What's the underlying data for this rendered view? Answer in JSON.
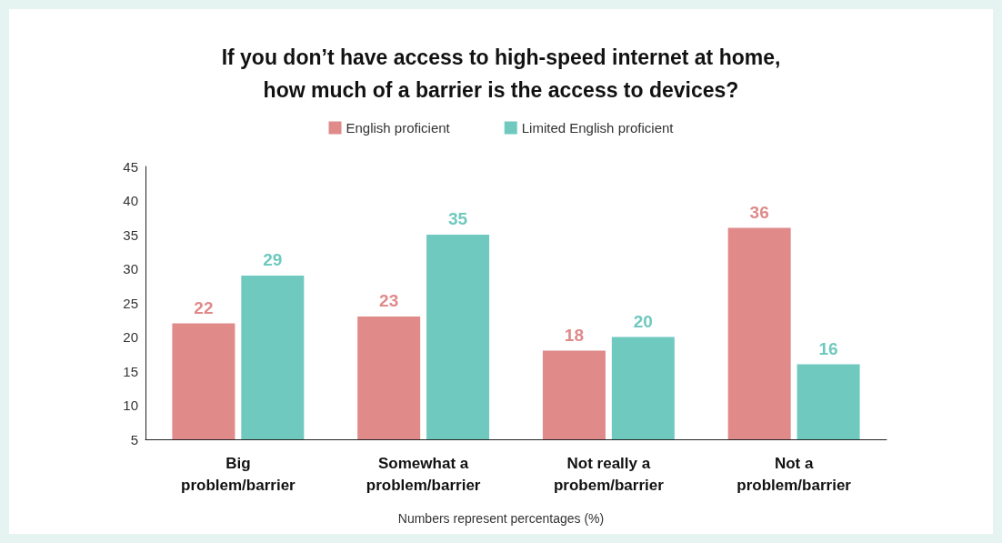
{
  "chart_data": {
    "type": "bar",
    "title": "If you don’t have access to high-speed internet at home,\nhow much of a barrier is the access to devices?",
    "categories": [
      "Big\nproblem/barrier",
      "Somewhat a\nproblem/barrier",
      "Not really a\nprobem/barrier",
      "Not a\nproblem/barrier"
    ],
    "series": [
      {
        "name": "English proficient",
        "color": "#e08a8a",
        "values": [
          22,
          23,
          18,
          36
        ]
      },
      {
        "name": "Limited English proficient",
        "color": "#6fc9bf",
        "values": [
          29,
          35,
          20,
          16
        ]
      }
    ],
    "ylim": [
      5,
      45
    ],
    "yticks": [
      5,
      10,
      15,
      20,
      25,
      30,
      35,
      40,
      45
    ],
    "grid": false,
    "legend": "top",
    "data_labels": true,
    "annotations": [
      "Numbers represent percentages (%)"
    ]
  }
}
